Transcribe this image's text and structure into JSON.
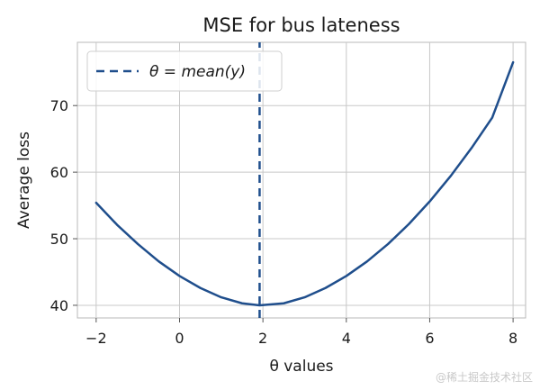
{
  "chart_data": {
    "type": "line",
    "title": "MSE for bus lateness",
    "xlabel": "θ values",
    "ylabel": "Average loss",
    "xlim": [
      -2.45,
      8.3
    ],
    "ylim": [
      38.1,
      79.5
    ],
    "xticks": [
      -2,
      0,
      2,
      4,
      6,
      8
    ],
    "yticks": [
      40,
      50,
      60,
      70
    ],
    "grid": true,
    "legend_position": "top-left",
    "series": [
      {
        "name": "θ = mean(y)",
        "style": "dashed-vertical",
        "x": [
          1.92,
          1.92
        ],
        "y": [
          38.1,
          79.5
        ],
        "color": "#1f4e8c"
      },
      {
        "name": "",
        "style": "solid",
        "x": [
          -2.0,
          -1.5,
          -1.0,
          -0.5,
          0.0,
          0.5,
          1.0,
          1.5,
          1.92,
          2.5,
          3.0,
          3.5,
          4.0,
          4.5,
          5.0,
          5.5,
          6.0,
          6.5,
          7.0,
          7.5,
          8.0
        ],
        "y": [
          55.4,
          52.1,
          49.2,
          46.6,
          44.4,
          42.6,
          41.2,
          40.3,
          40.0,
          40.3,
          41.2,
          42.6,
          44.4,
          46.6,
          49.2,
          52.2,
          55.6,
          59.4,
          63.6,
          68.2,
          76.5
        ],
        "color": "#1f4e8c"
      }
    ]
  },
  "watermark": "@稀土掘金技术社区"
}
